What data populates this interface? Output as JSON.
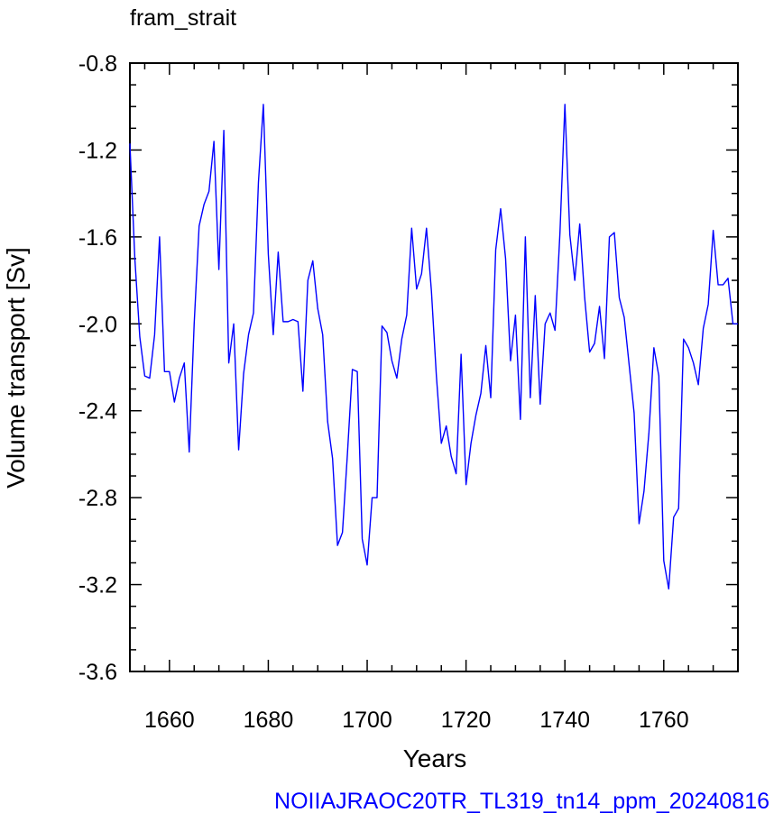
{
  "chart_data": {
    "type": "line",
    "title": "fram_strait",
    "xlabel": "Years",
    "ylabel": "Volume transport [Sv]",
    "caption": "NOIIAJRAOC20TR_TL319_tn14_ppm_20240816",
    "xlim": [
      1652,
      1775
    ],
    "ylim": [
      -3.6,
      -0.8
    ],
    "xticks": [
      1660,
      1680,
      1700,
      1720,
      1740,
      1760
    ],
    "yticks": [
      -0.8,
      -1.2,
      -1.6,
      -2.0,
      -2.4,
      -2.8,
      -3.2,
      -3.6
    ],
    "ytick_labels": [
      "-0.8",
      "-1.2",
      "-1.6",
      "-2.0",
      "-2.4",
      "-2.8",
      "-3.2",
      "-3.6"
    ],
    "grid": false,
    "line_color": "#0000ff",
    "caption_color": "#0000ff",
    "series": [
      {
        "x": [
          1652,
          1653,
          1654,
          1655,
          1656,
          1657,
          1658,
          1659,
          1660,
          1661,
          1662,
          1663,
          1664,
          1665,
          1666,
          1667,
          1668,
          1669,
          1670,
          1671,
          1672,
          1673,
          1674,
          1675,
          1676,
          1677,
          1678,
          1679,
          1680,
          1681,
          1682,
          1683,
          1684,
          1685,
          1686,
          1687,
          1688,
          1689,
          1690,
          1691,
          1692,
          1693,
          1694,
          1695,
          1696,
          1697,
          1698,
          1699,
          1700,
          1701,
          1702,
          1703,
          1704,
          1705,
          1706,
          1707,
          1708,
          1709,
          1710,
          1711,
          1712,
          1713,
          1714,
          1715,
          1716,
          1717,
          1718,
          1719,
          1720,
          1721,
          1722,
          1723,
          1724,
          1725,
          1726,
          1727,
          1728,
          1729,
          1730,
          1731,
          1732,
          1733,
          1734,
          1735,
          1736,
          1737,
          1738,
          1739,
          1740,
          1741,
          1742,
          1743,
          1744,
          1745,
          1746,
          1747,
          1748,
          1749,
          1750,
          1751,
          1752,
          1753,
          1754,
          1755,
          1756,
          1757,
          1758,
          1759,
          1760,
          1761,
          1762,
          1763,
          1764,
          1765,
          1766,
          1767,
          1768,
          1769,
          1770,
          1771,
          1772,
          1773,
          1774,
          1775
        ],
        "values": [
          -1.17,
          -1.7,
          -2.06,
          -2.24,
          -2.25,
          -2.05,
          -1.6,
          -2.22,
          -2.22,
          -2.36,
          -2.25,
          -2.18,
          -2.59,
          -2.0,
          -1.55,
          -1.45,
          -1.39,
          -1.16,
          -1.75,
          -1.11,
          -2.18,
          -2.0,
          -2.58,
          -2.23,
          -2.05,
          -1.95,
          -1.35,
          -0.99,
          -1.68,
          -2.05,
          -1.67,
          -1.99,
          -1.99,
          -1.98,
          -1.99,
          -2.31,
          -1.8,
          -1.71,
          -1.93,
          -2.05,
          -2.45,
          -2.62,
          -3.02,
          -2.96,
          -2.6,
          -2.21,
          -2.22,
          -2.99,
          -3.11,
          -2.8,
          -2.8,
          -2.01,
          -2.04,
          -2.17,
          -2.25,
          -2.07,
          -1.96,
          -1.56,
          -1.84,
          -1.77,
          -1.56,
          -1.85,
          -2.24,
          -2.55,
          -2.47,
          -2.61,
          -2.69,
          -2.14,
          -2.74,
          -2.55,
          -2.42,
          -2.32,
          -2.1,
          -2.34,
          -1.66,
          -1.47,
          -1.7,
          -2.17,
          -1.96,
          -2.44,
          -1.6,
          -2.34,
          -1.87,
          -2.37,
          -2.0,
          -1.95,
          -2.03,
          -1.58,
          -0.99,
          -1.59,
          -1.8,
          -1.54,
          -1.88,
          -2.13,
          -2.09,
          -1.92,
          -2.16,
          -1.6,
          -1.58,
          -1.88,
          -1.97,
          -2.19,
          -2.41,
          -2.92,
          -2.77,
          -2.5,
          -2.11,
          -2.24,
          -3.09,
          -3.22,
          -2.89,
          -2.85,
          -2.07,
          -2.11,
          -2.18,
          -2.28,
          -2.02,
          -1.91,
          -1.57,
          -1.82,
          -1.82,
          -1.79,
          -2.0,
          -2.0
        ]
      }
    ]
  }
}
